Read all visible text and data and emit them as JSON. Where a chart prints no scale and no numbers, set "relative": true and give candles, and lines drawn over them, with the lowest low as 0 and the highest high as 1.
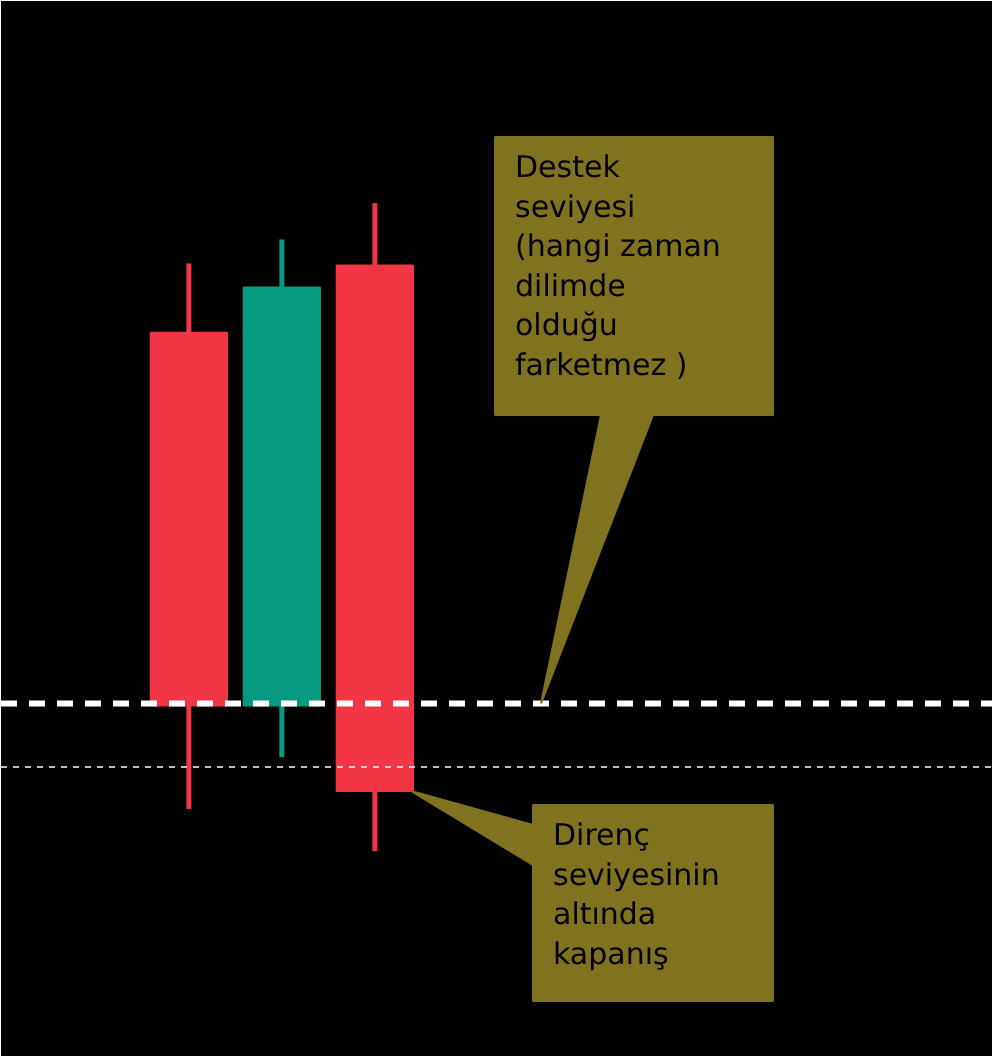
{
  "chart_data": {
    "type": "candlestick",
    "relative": true,
    "categories": [
      null,
      null,
      null
    ],
    "ohlc": [
      [
        0.8,
        0.907,
        0.065,
        0.225
      ],
      [
        0.225,
        0.944,
        0.145,
        0.87
      ],
      [
        0.904,
        1.0,
        0.0,
        0.093
      ]
    ],
    "colors": [
      "#f23645",
      "#089981",
      "#f23645"
    ],
    "ref_lines": [
      {
        "axis": "y",
        "value": 0.228,
        "color": "#ffffff",
        "line_style": "dashed"
      },
      {
        "axis": "y",
        "value": 0.13,
        "color": "#ffffff",
        "line_style": "dotted"
      }
    ],
    "annotations": [
      "Destek\nseviyesi\n(hangi zaman\ndilimde\nolduğu\nfarketmez )",
      "Direnç\nseviyesinin\naltında\nkapanış"
    ]
  }
}
